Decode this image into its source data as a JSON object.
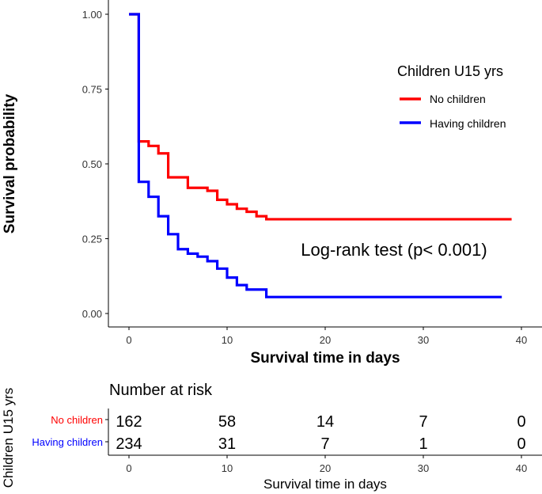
{
  "chart_data": {
    "type": "line",
    "subtype": "kaplan-meier",
    "xlabel": "Survival time in days",
    "ylabel": "Survival probability",
    "xlim": [
      -2,
      42
    ],
    "ylim": [
      -0.03,
      1.05
    ],
    "x_ticks": [
      0,
      10,
      20,
      30,
      40
    ],
    "y_ticks": [
      0.0,
      0.25,
      0.5,
      0.75,
      1.0
    ],
    "y_tick_labels": [
      "0.00",
      "0.25",
      "0.50",
      "0.75",
      "1.00"
    ],
    "grid": false,
    "legend": {
      "title": "Children U15 yrs",
      "position": "top-right"
    },
    "annotation": "Log-rank test (p< 0.001)",
    "series": [
      {
        "name": "No children",
        "color": "#ff0000",
        "steps": [
          [
            0,
            1.0
          ],
          [
            1,
            0.575
          ],
          [
            2,
            0.56
          ],
          [
            3,
            0.535
          ],
          [
            4,
            0.455
          ],
          [
            6,
            0.42
          ],
          [
            8,
            0.41
          ],
          [
            9,
            0.38
          ],
          [
            10,
            0.365
          ],
          [
            11,
            0.35
          ],
          [
            12,
            0.34
          ],
          [
            13,
            0.325
          ],
          [
            14,
            0.315
          ],
          [
            39,
            0.315
          ]
        ]
      },
      {
        "name": "Having children",
        "color": "#0000ff",
        "steps": [
          [
            0,
            1.0
          ],
          [
            1,
            0.44
          ],
          [
            2,
            0.39
          ],
          [
            3,
            0.325
          ],
          [
            4,
            0.265
          ],
          [
            5,
            0.215
          ],
          [
            6,
            0.2
          ],
          [
            7,
            0.19
          ],
          [
            8,
            0.175
          ],
          [
            9,
            0.15
          ],
          [
            10,
            0.12
          ],
          [
            11,
            0.095
          ],
          [
            12,
            0.08
          ],
          [
            14,
            0.055
          ],
          [
            38,
            0.055
          ]
        ]
      }
    ],
    "risk_table": {
      "title": "Number at risk",
      "ylabel": "Children U15 yrs",
      "xlabel": "Survival time in days",
      "time_points": [
        0,
        10,
        20,
        30,
        40
      ],
      "rows": [
        {
          "name": "No children",
          "color": "#ff0000",
          "counts": [
            "162",
            "58",
            "14",
            "7",
            "0"
          ]
        },
        {
          "name": "Having children",
          "color": "#0000ff",
          "counts": [
            "234",
            "31",
            "7",
            "1",
            "0"
          ]
        }
      ]
    }
  }
}
